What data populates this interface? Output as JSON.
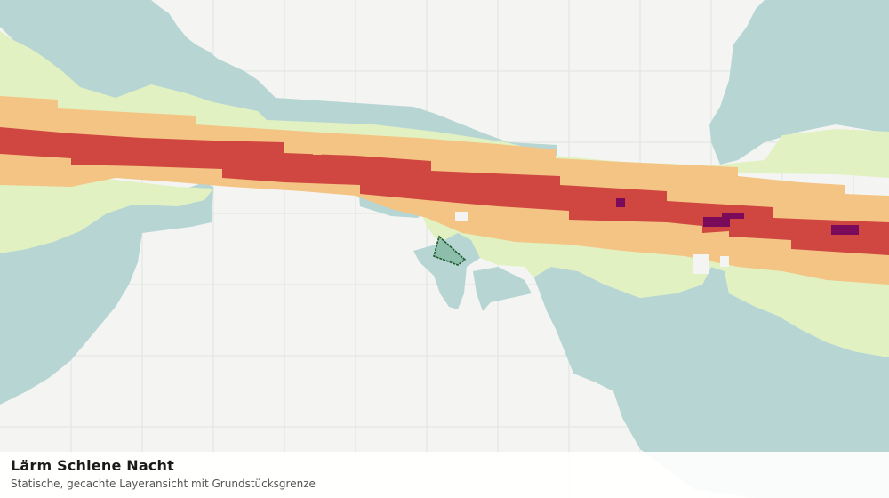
{
  "map": {
    "layer_name": "Lärm Schiene Nacht",
    "description": "Statische, gecachte Layeransicht mit Grundstücksgrenze",
    "noise_zone_colors": {
      "zone_1": "#b7d6d3",
      "zone_2": "#e2f1c1",
      "zone_3": "#f4c484",
      "zone_4": "#cf4740",
      "zone_5": "#7a0a5a"
    },
    "grid_color": "#e1e3e0",
    "background_color": "#f4f5f3",
    "parcel_boundary_color": "#1d5a2d"
  }
}
